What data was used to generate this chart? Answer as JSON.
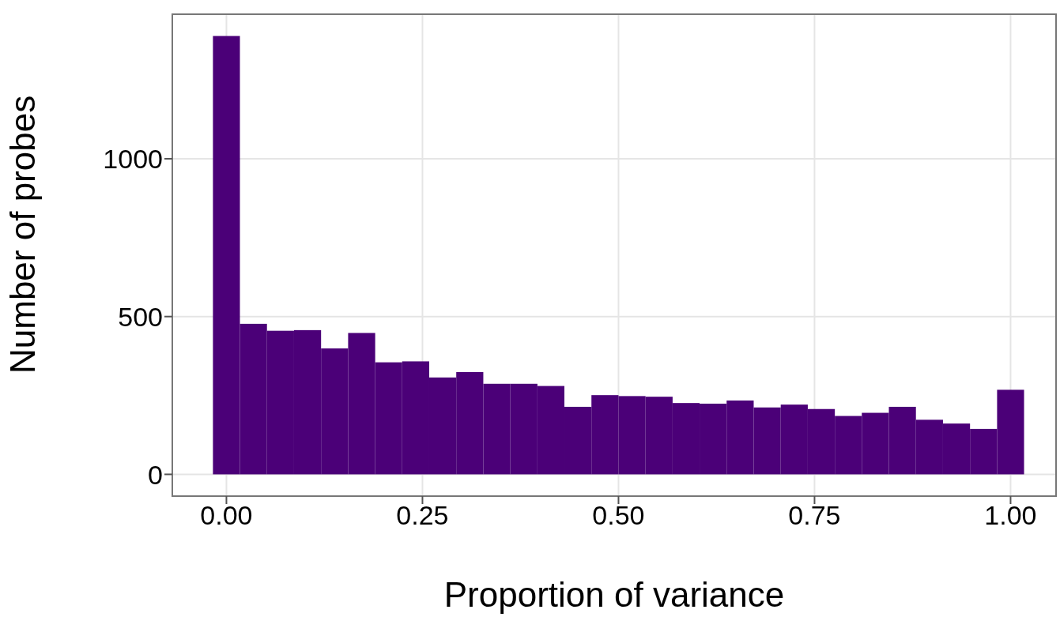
{
  "chart_data": {
    "type": "histogram",
    "xlabel": "Proportion of variance",
    "ylabel": "Number of probes",
    "bins": [
      -0.0172,
      0.0172,
      0.0517,
      0.0862,
      0.1207,
      0.1552,
      0.1897,
      0.2241,
      0.2586,
      0.2931,
      0.3276,
      0.3621,
      0.3966,
      0.431,
      0.4655,
      0.5,
      0.5345,
      0.569,
      0.6034,
      0.6379,
      0.6724,
      0.7069,
      0.7414,
      0.7759,
      0.8103,
      0.8448,
      0.8793,
      0.9138,
      0.9483,
      0.9828,
      1.0172
    ],
    "values": [
      1389,
      477,
      455,
      457,
      399,
      448,
      355,
      358,
      307,
      324,
      287,
      287,
      280,
      214,
      251,
      248,
      246,
      226,
      224,
      234,
      212,
      221,
      207,
      185,
      195,
      214,
      173,
      161,
      144,
      268
    ],
    "color": "#4b0078",
    "xlim": [
      -0.069,
      1.058
    ],
    "xticks": [
      {
        "value": 0,
        "label": "0.00"
      },
      {
        "value": 0.25,
        "label": "0.25"
      },
      {
        "value": 0.5,
        "label": "0.50"
      },
      {
        "value": 0.75,
        "label": "0.75"
      },
      {
        "value": 1,
        "label": "1.00"
      }
    ],
    "ylim": [
      -69,
      1458
    ],
    "yticks": [
      0,
      500,
      1000
    ],
    "grid": true
  }
}
